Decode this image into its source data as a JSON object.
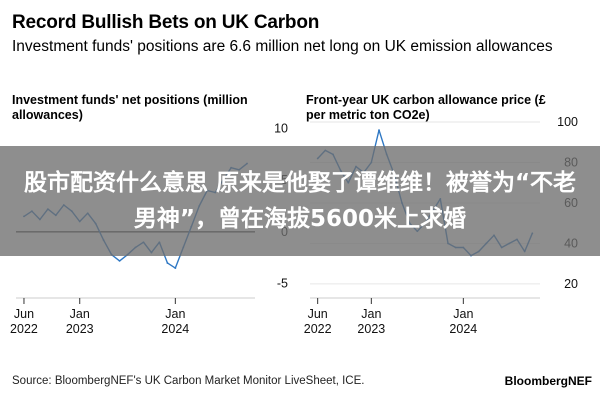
{
  "title": "Record Bullish Bets on UK Carbon",
  "subtitle": "Investment funds' positions are 6.6 million net long on UK emission allowances",
  "overlay_banner": "股市配资什么意思 原来是他娶了谭维维！被誉为“不老男神”，曾在海拔5600米上求婚",
  "source": "Source: BloombergNEF's UK Carbon Market Monitor LiveSheet, ICE.",
  "brand": "BloombergNEF",
  "colors": {
    "line": "#2f78c4",
    "zero_line": "#000000",
    "grid": "#e6e6e6",
    "banner": "#6e6e6e"
  },
  "chart_data": [
    {
      "type": "line",
      "title": "Investment funds' net positions (million allowances)",
      "x_ticks": [
        "Jun 2022",
        "Jan 2023",
        "Jan 2024"
      ],
      "y_ticks": [
        10,
        5,
        0,
        -5
      ],
      "ylim": [
        -6,
        11
      ],
      "xlim": [
        "2022-05",
        "2024-11"
      ],
      "grid": false,
      "zero_line": true,
      "series": [
        {
          "x": [
            "2022-06",
            "2022-07",
            "2022-08",
            "2022-09",
            "2022-10",
            "2022-11",
            "2022-12",
            "2023-01",
            "2023-02",
            "2023-03",
            "2023-04",
            "2023-05",
            "2023-06",
            "2023-07",
            "2023-08",
            "2023-09",
            "2023-10",
            "2023-11",
            "2023-12",
            "2024-01",
            "2024-02",
            "2024-03",
            "2024-04",
            "2024-05",
            "2024-06",
            "2024-07",
            "2024-08",
            "2024-09",
            "2024-10"
          ],
          "values": [
            1.5,
            2.0,
            1.2,
            2.2,
            1.6,
            2.6,
            2.0,
            1.0,
            1.8,
            0.8,
            -0.8,
            -2.2,
            -2.8,
            -2.2,
            -1.5,
            -1.0,
            -2.0,
            -1.0,
            -3.0,
            -3.5,
            -1.5,
            0.5,
            2.5,
            4.0,
            3.8,
            5.0,
            6.2,
            6.0,
            6.6
          ]
        }
      ]
    },
    {
      "type": "line",
      "title": "Front-year UK carbon allowance price (£ per metric ton CO2e)",
      "x_ticks": [
        "Jun 2022",
        "Jan 2023",
        "Jan 2024"
      ],
      "y_ticks": [
        100,
        80,
        60,
        40,
        20
      ],
      "ylim": [
        15,
        102
      ],
      "xlim": [
        "2022-05",
        "2024-11"
      ],
      "grid": true,
      "series": [
        {
          "x": [
            "2022-06",
            "2022-07",
            "2022-08",
            "2022-09",
            "2022-10",
            "2022-11",
            "2022-12",
            "2023-01",
            "2023-02",
            "2023-03",
            "2023-04",
            "2023-05",
            "2023-06",
            "2023-07",
            "2023-08",
            "2023-09",
            "2023-10",
            "2023-11",
            "2023-12",
            "2024-01",
            "2024-02",
            "2024-03",
            "2024-04",
            "2024-05",
            "2024-06",
            "2024-07",
            "2024-08",
            "2024-09",
            "2024-10"
          ],
          "values": [
            82,
            86,
            84,
            76,
            70,
            78,
            75,
            80,
            96,
            84,
            74,
            60,
            50,
            46,
            50,
            56,
            62,
            40,
            38,
            38,
            34,
            36,
            40,
            44,
            38,
            40,
            42,
            36,
            45
          ]
        }
      ]
    }
  ]
}
